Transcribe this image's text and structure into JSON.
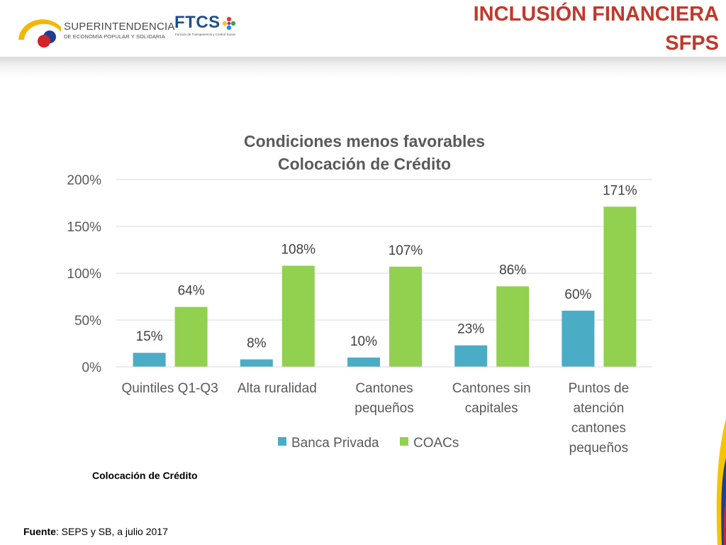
{
  "header": {
    "title_line1": "INCLUSIÓN FINANCIERA",
    "title_line2": "SFPS",
    "logo_seps_line1": "SUPERINTENDENCIA",
    "logo_seps_line2": "DE ECONOMÍA POPULAR Y SOLIDARIA",
    "logo_ftcs_word": "FTCS",
    "logo_ftcs_sub": "Función de Transparencia y Control Social"
  },
  "caption": "Colocación de Crédito",
  "source": {
    "label": "Fuente",
    "text": ": SEPS y SB, a julio 2017"
  },
  "colors": {
    "title": "#c0392b",
    "banca_privada": "#4bacc6",
    "coacs": "#92d050"
  },
  "chart_data": {
    "type": "bar",
    "title": [
      "Condiciones menos favorables",
      "Colocación de Crédito"
    ],
    "categories": [
      [
        "Quintiles Q1-Q3"
      ],
      [
        "Alta ruralidad"
      ],
      [
        "Cantones",
        "pequeños"
      ],
      [
        "Cantones sin",
        "capitales"
      ],
      [
        "Puntos de",
        "atención",
        "cantones",
        "pequeños"
      ]
    ],
    "series": [
      {
        "name": "Banca Privada",
        "values": [
          15,
          8,
          10,
          23,
          60
        ],
        "labels": [
          "15%",
          "8%",
          "10%",
          "23%",
          "60%"
        ],
        "color": "#4bacc6"
      },
      {
        "name": "COACs",
        "values": [
          64,
          108,
          107,
          86,
          171
        ],
        "labels": [
          "64%",
          "108%",
          "107%",
          "86%",
          "171%"
        ],
        "color": "#92d050"
      }
    ],
    "ylim": [
      0,
      200
    ],
    "yticks": [
      0,
      50,
      100,
      150,
      200
    ],
    "ytick_labels": [
      "0%",
      "50%",
      "100%",
      "150%",
      "200%"
    ],
    "grid": true,
    "legend_position": "bottom"
  }
}
